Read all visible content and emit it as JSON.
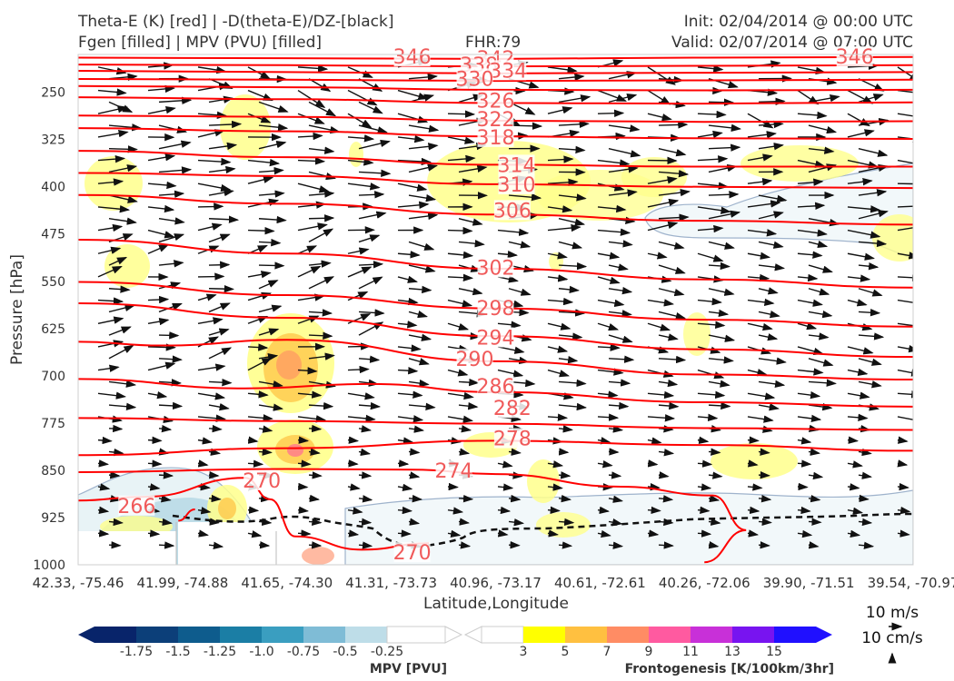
{
  "header": {
    "line1_left": "Theta-E (K) [red] | -D(theta-E)/DZ-[black]",
    "line2_left": "Fgen [filled] | MPV (PVU) [filled]",
    "fhr": "FHR:79",
    "init": "Init: 02/04/2014 @ 00:00 UTC",
    "valid": "Valid: 02/07/2014 @ 07:00 UTC"
  },
  "chart_data": {
    "type": "contour",
    "xlabel": "Latitude,Longitude",
    "ylabel": "Pressure [hPa]",
    "x_ticks": [
      "42.33, -75.46",
      "41.99, -74.88",
      "41.65, -74.30",
      "41.31, -73.73",
      "40.96, -73.17",
      "40.61, -72.61",
      "40.26, -72.06",
      "39.90, -71.51",
      "39.54, -70.97"
    ],
    "y_ticks": [
      250,
      325,
      400,
      475,
      550,
      625,
      700,
      775,
      850,
      925,
      1000
    ],
    "ylim": [
      1000,
      190
    ],
    "theta_e": {
      "color": "#ff0000",
      "labels": [
        {
          "value": "346",
          "x": 0.4,
          "p": 193
        },
        {
          "value": "342",
          "x": 0.5,
          "p": 196
        },
        {
          "value": "338",
          "x": 0.48,
          "p": 206
        },
        {
          "value": "334",
          "x": 0.515,
          "p": 215
        },
        {
          "value": "330",
          "x": 0.475,
          "p": 228
        },
        {
          "value": "326",
          "x": 0.5,
          "p": 263
        },
        {
          "value": "322",
          "x": 0.5,
          "p": 292
        },
        {
          "value": "318",
          "x": 0.5,
          "p": 321
        },
        {
          "value": "314",
          "x": 0.525,
          "p": 365
        },
        {
          "value": "310",
          "x": 0.525,
          "p": 396
        },
        {
          "value": "306",
          "x": 0.52,
          "p": 437
        },
        {
          "value": "302",
          "x": 0.5,
          "p": 528
        },
        {
          "value": "298",
          "x": 0.5,
          "p": 592
        },
        {
          "value": "294",
          "x": 0.5,
          "p": 639
        },
        {
          "value": "290",
          "x": 0.475,
          "p": 673
        },
        {
          "value": "286",
          "x": 0.5,
          "p": 716
        },
        {
          "value": "282",
          "x": 0.52,
          "p": 751
        },
        {
          "value": "278",
          "x": 0.52,
          "p": 799
        },
        {
          "value": "274",
          "x": 0.45,
          "p": 850
        },
        {
          "value": "270",
          "x": 0.22,
          "p": 866
        },
        {
          "value": "266",
          "x": 0.07,
          "p": 906
        },
        {
          "value": "270",
          "x": 0.4,
          "p": 980
        },
        {
          "value": "346",
          "x": 0.93,
          "p": 193
        }
      ],
      "lines": [
        [
          [
            0,
            195
          ],
          [
            0.25,
            196
          ],
          [
            0.5,
            197
          ],
          [
            0.75,
            195
          ],
          [
            1,
            194
          ]
        ],
        [
          [
            0,
            206
          ],
          [
            0.25,
            207
          ],
          [
            0.5,
            209
          ],
          [
            0.75,
            208
          ],
          [
            1,
            207
          ]
        ],
        [
          [
            0,
            216
          ],
          [
            0.25,
            218
          ],
          [
            0.5,
            220
          ],
          [
            0.75,
            219
          ],
          [
            1,
            218
          ]
        ],
        [
          [
            0,
            229
          ],
          [
            0.25,
            230
          ],
          [
            0.5,
            232
          ],
          [
            0.75,
            231
          ],
          [
            1,
            230
          ]
        ],
        [
          [
            0,
            240
          ],
          [
            0.25,
            242
          ],
          [
            0.5,
            246
          ],
          [
            0.75,
            247
          ],
          [
            1,
            246
          ]
        ],
        [
          [
            0,
            258
          ],
          [
            0.25,
            261
          ],
          [
            0.5,
            267
          ],
          [
            0.75,
            268
          ],
          [
            1,
            266
          ]
        ],
        [
          [
            0,
            287
          ],
          [
            0.25,
            289
          ],
          [
            0.5,
            295
          ],
          [
            0.75,
            297
          ],
          [
            1,
            296
          ]
        ],
        [
          [
            0,
            307
          ],
          [
            0.25,
            312
          ],
          [
            0.5,
            320
          ],
          [
            0.75,
            323
          ],
          [
            1,
            324
          ]
        ],
        [
          [
            0,
            343
          ],
          [
            0.25,
            353
          ],
          [
            0.5,
            365
          ],
          [
            0.75,
            368
          ],
          [
            1,
            368
          ]
        ],
        [
          [
            0,
            378
          ],
          [
            0.25,
            383
          ],
          [
            0.5,
            396
          ],
          [
            0.75,
            400
          ],
          [
            1,
            402
          ]
        ],
        [
          [
            0,
            413
          ],
          [
            0.25,
            427
          ],
          [
            0.5,
            444
          ],
          [
            0.75,
            454
          ],
          [
            1,
            460
          ]
        ],
        [
          [
            0,
            484
          ],
          [
            0.25,
            506
          ],
          [
            0.5,
            530
          ],
          [
            0.75,
            547
          ],
          [
            1,
            560
          ]
        ],
        [
          [
            0,
            551
          ],
          [
            0.25,
            572
          ],
          [
            0.5,
            593
          ],
          [
            0.75,
            611
          ],
          [
            1,
            622
          ]
        ],
        [
          [
            0,
            585
          ],
          [
            0.25,
            608
          ],
          [
            0.5,
            637
          ],
          [
            0.75,
            658
          ],
          [
            1,
            670
          ]
        ],
        [
          [
            0,
            646
          ],
          [
            0.1,
            652
          ],
          [
            0.25,
            643
          ],
          [
            0.5,
            677
          ],
          [
            0.75,
            698
          ],
          [
            1,
            706
          ]
        ],
        [
          [
            0,
            705
          ],
          [
            0.2,
            720
          ],
          [
            0.35,
            713
          ],
          [
            0.5,
            726
          ],
          [
            0.75,
            742
          ],
          [
            1,
            749
          ]
        ],
        [
          [
            0,
            767
          ],
          [
            0.25,
            772
          ],
          [
            0.5,
            776
          ],
          [
            0.75,
            783
          ],
          [
            1,
            786
          ]
        ],
        [
          [
            0,
            826
          ],
          [
            0.25,
            815
          ],
          [
            0.5,
            803
          ],
          [
            0.75,
            810
          ],
          [
            1,
            819
          ]
        ],
        [
          [
            0,
            853
          ],
          [
            0.25,
            848
          ],
          [
            0.4,
            849
          ],
          [
            0.5,
            856
          ],
          [
            0.65,
            876
          ],
          [
            0.76,
            890
          ],
          [
            0.8,
            945
          ],
          [
            0.75,
            996
          ]
        ],
        [
          [
            0,
            898
          ],
          [
            0.08,
            892
          ],
          [
            0.2,
            862
          ],
          [
            0.23,
            896
          ],
          [
            0.26,
            955
          ],
          [
            0.34,
            976
          ],
          [
            0.42,
            966
          ]
        ],
        [
          [
            0.12,
            930
          ],
          [
            0.14,
            912
          ]
        ]
      ]
    },
    "mpv_fgen_colorbar": {
      "mpv_title": "MPV [PVU]",
      "mpv_ticks": [
        "-1.75",
        "-1.5",
        "-1.25",
        "-1.0",
        "-0.75",
        "-0.5",
        "-0.25"
      ],
      "mpv_colors": [
        "#08246a",
        "#0c3f79",
        "#0e5c8d",
        "#1b7ea5",
        "#3a9ec0",
        "#7fbcd6",
        "#bedde8"
      ],
      "fgen_title": "Frontogenesis [K/100km/3hr]",
      "fgen_ticks": [
        "3",
        "5",
        "7",
        "9",
        "11",
        "13",
        "15"
      ],
      "fgen_colors": [
        "#ffff00",
        "#ffc040",
        "#ff8c64",
        "#ff5aa0",
        "#c830d8",
        "#7814f0",
        "#2010ff"
      ]
    },
    "wind_legend": {
      "horizontal": "10 m/s",
      "vertical": "10 cm/s"
    }
  }
}
